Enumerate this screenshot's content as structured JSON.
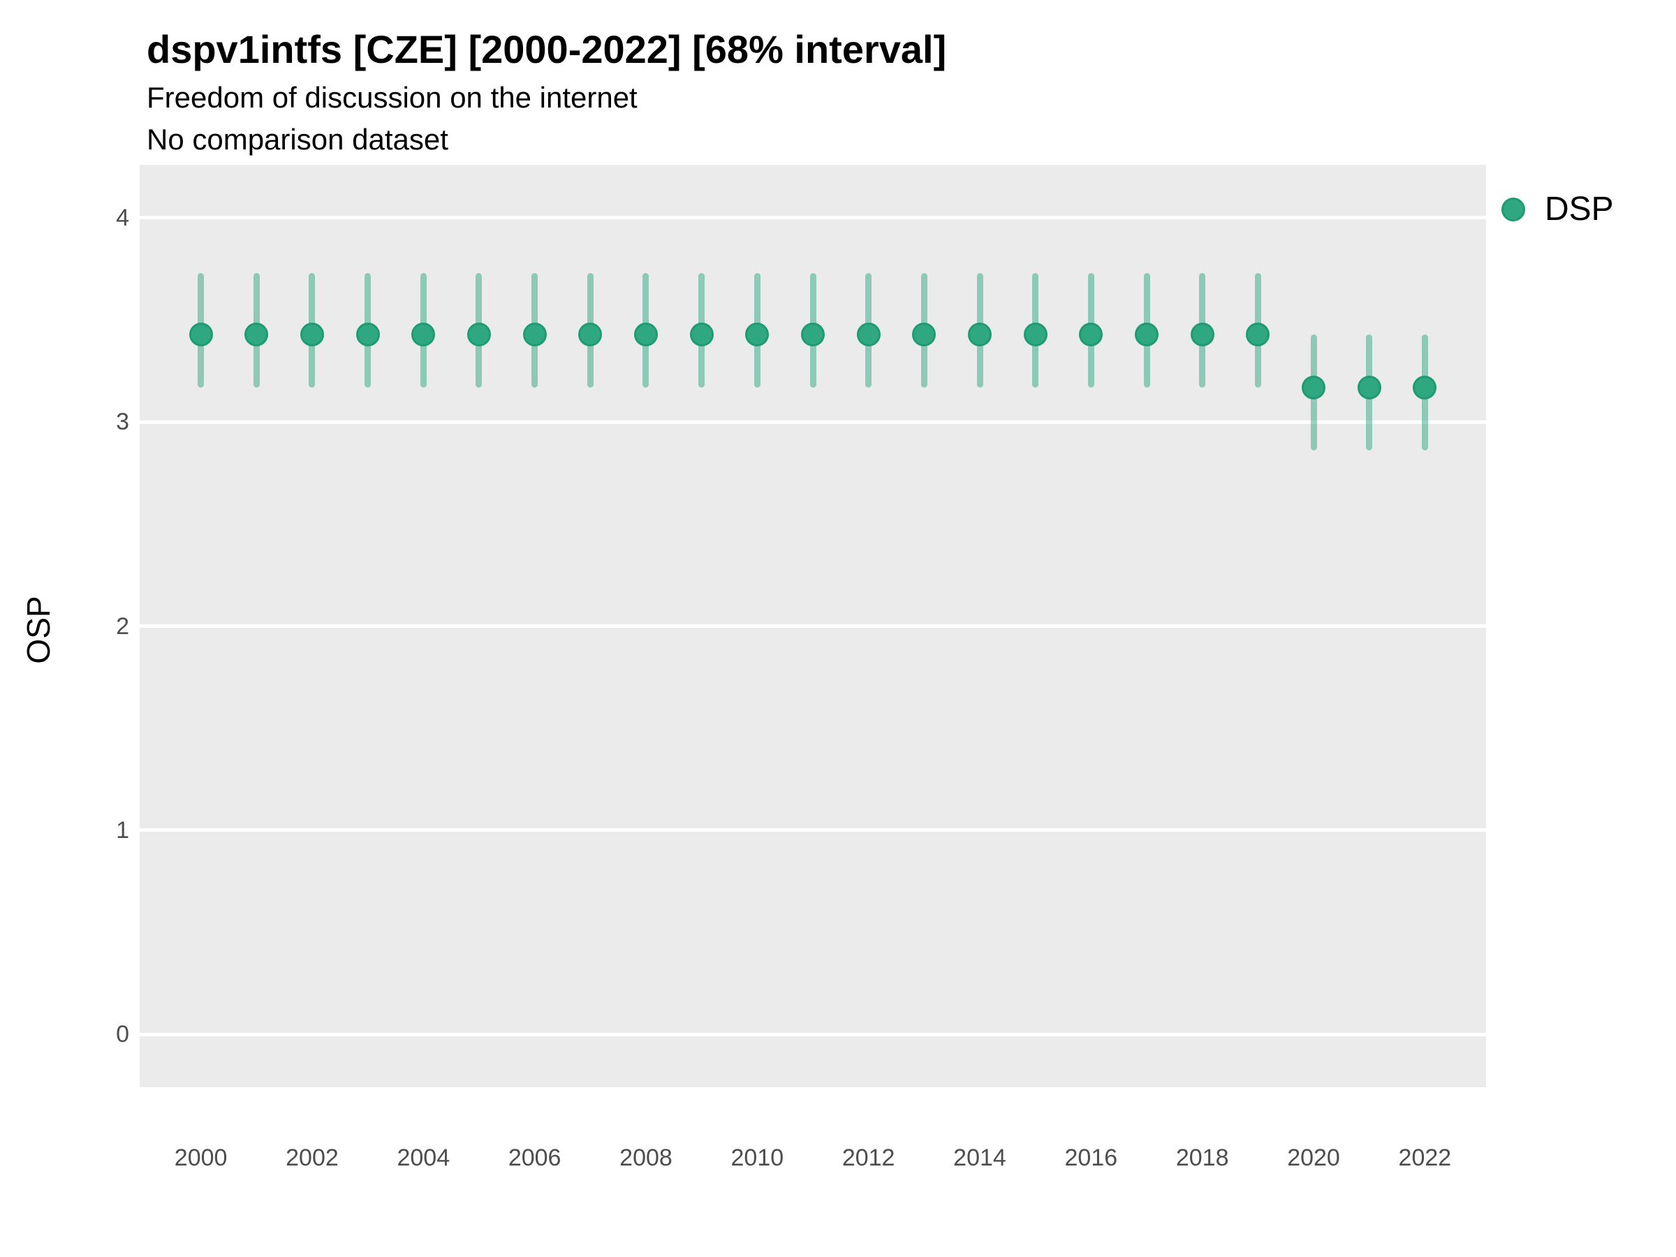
{
  "header": {
    "title": "dspv1intfs [CZE] [2000-2022] [68% interval]",
    "subtitle": "Freedom of discussion on the internet",
    "note": "No comparison dataset"
  },
  "legend": {
    "label": "DSP"
  },
  "colors": {
    "point_fill": "#2fa781",
    "point_stroke": "#1f9b72",
    "interval": "rgba(47,167,129,0.5)",
    "panel_background": "#ebebeb",
    "gridline": "#ffffff",
    "tick_text": "#4d4d4d"
  },
  "chart_data": {
    "type": "scatter",
    "title": "dspv1intfs [CZE] [2000-2022] [68% interval]",
    "subtitle": "Freedom of discussion on the internet",
    "note": "No comparison dataset",
    "xlabel": "",
    "ylabel": "OSP",
    "legend_position": "right",
    "grid": "major-horizontal-only",
    "xlim": [
      1998.9,
      2023.1
    ],
    "ylim": [
      -0.26,
      4.26
    ],
    "yticks": [
      0,
      1,
      2,
      3,
      4
    ],
    "xticks": [
      2000,
      2002,
      2004,
      2006,
      2008,
      2010,
      2012,
      2014,
      2016,
      2018,
      2020,
      2022
    ],
    "series": [
      {
        "name": "DSP",
        "interval_label": "68% interval",
        "points": [
          {
            "year": 2000,
            "est": 3.43,
            "lo": 3.17,
            "hi": 3.73
          },
          {
            "year": 2001,
            "est": 3.43,
            "lo": 3.17,
            "hi": 3.73
          },
          {
            "year": 2002,
            "est": 3.43,
            "lo": 3.17,
            "hi": 3.73
          },
          {
            "year": 2003,
            "est": 3.43,
            "lo": 3.17,
            "hi": 3.73
          },
          {
            "year": 2004,
            "est": 3.43,
            "lo": 3.17,
            "hi": 3.73
          },
          {
            "year": 2005,
            "est": 3.43,
            "lo": 3.17,
            "hi": 3.73
          },
          {
            "year": 2006,
            "est": 3.43,
            "lo": 3.17,
            "hi": 3.73
          },
          {
            "year": 2007,
            "est": 3.43,
            "lo": 3.17,
            "hi": 3.73
          },
          {
            "year": 2008,
            "est": 3.43,
            "lo": 3.17,
            "hi": 3.73
          },
          {
            "year": 2009,
            "est": 3.43,
            "lo": 3.17,
            "hi": 3.73
          },
          {
            "year": 2010,
            "est": 3.43,
            "lo": 3.17,
            "hi": 3.73
          },
          {
            "year": 2011,
            "est": 3.43,
            "lo": 3.17,
            "hi": 3.73
          },
          {
            "year": 2012,
            "est": 3.43,
            "lo": 3.17,
            "hi": 3.73
          },
          {
            "year": 2013,
            "est": 3.43,
            "lo": 3.17,
            "hi": 3.73
          },
          {
            "year": 2014,
            "est": 3.43,
            "lo": 3.17,
            "hi": 3.73
          },
          {
            "year": 2015,
            "est": 3.43,
            "lo": 3.17,
            "hi": 3.73
          },
          {
            "year": 2016,
            "est": 3.43,
            "lo": 3.17,
            "hi": 3.73
          },
          {
            "year": 2017,
            "est": 3.43,
            "lo": 3.17,
            "hi": 3.73
          },
          {
            "year": 2018,
            "est": 3.43,
            "lo": 3.17,
            "hi": 3.73
          },
          {
            "year": 2019,
            "est": 3.43,
            "lo": 3.17,
            "hi": 3.73
          },
          {
            "year": 2020,
            "est": 3.17,
            "lo": 2.86,
            "hi": 3.43
          },
          {
            "year": 2021,
            "est": 3.17,
            "lo": 2.86,
            "hi": 3.43
          },
          {
            "year": 2022,
            "est": 3.17,
            "lo": 2.86,
            "hi": 3.43
          }
        ]
      }
    ]
  }
}
